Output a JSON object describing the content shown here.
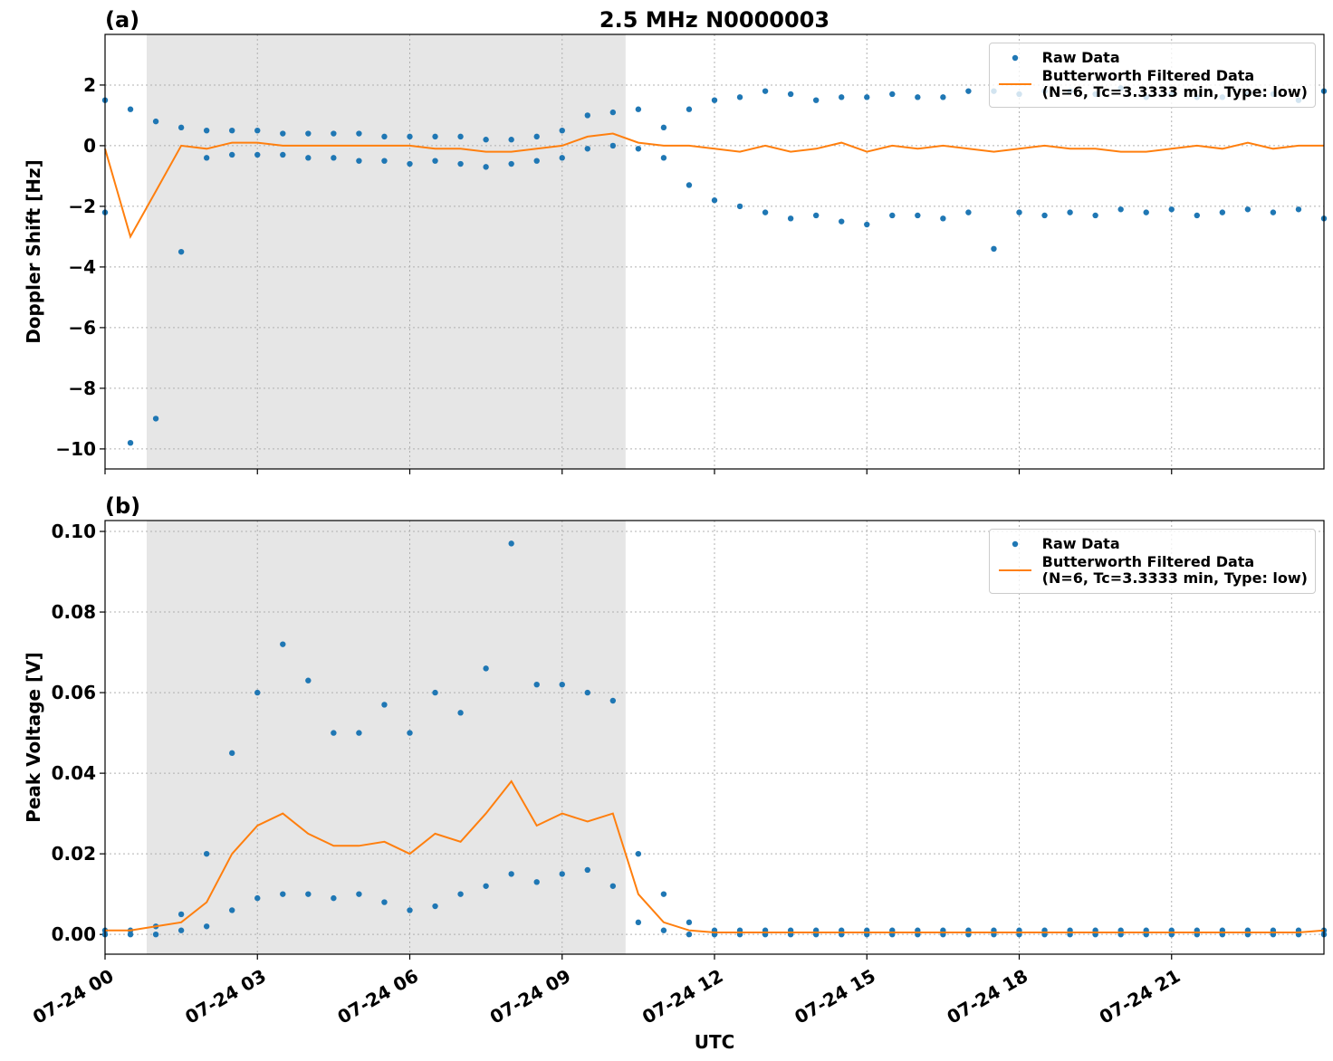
{
  "chart_data": [
    {
      "type": "line",
      "panel_label": "(a)",
      "title": "2.5 MHz N0000003",
      "ylabel": "Doppler Shift [Hz]",
      "xlim": [
        0,
        24
      ],
      "xticks": [
        0,
        3,
        6,
        9,
        12,
        15,
        18,
        21
      ],
      "xtick_labels": false,
      "ylim": [
        -10.66,
        3.67
      ],
      "yticks": [
        {
          "value": -10,
          "label": "−10"
        },
        {
          "value": -8,
          "label": "−8"
        },
        {
          "value": -6,
          "label": "−6"
        },
        {
          "value": -4,
          "label": "−4"
        },
        {
          "value": -2,
          "label": "−2"
        },
        0,
        2
      ],
      "grid": true,
      "legend": "upper right",
      "span": [
        0.82,
        10.25
      ],
      "span_color": "#e6e6e6",
      "series": [
        {
          "name": "Raw Data",
          "type": "scatter",
          "color": "#1f77b4",
          "x": [
            0,
            0.5,
            1,
            1.5,
            2,
            2.5,
            3,
            3.5,
            4,
            4.5,
            5,
            5.5,
            6,
            6.5,
            7,
            7.5,
            8,
            8.5,
            9,
            9.5,
            10,
            10.5,
            11,
            11.5,
            12,
            12.5,
            13,
            13.5,
            14,
            14.5,
            15,
            15.5,
            16,
            16.5,
            17,
            17.5,
            18,
            18.5,
            19,
            19.5,
            20,
            20.5,
            21,
            21.5,
            22,
            22.5,
            23,
            23.5,
            24,
            0,
            0.5,
            1,
            1.5,
            2,
            2.5,
            3,
            3.5,
            4,
            4.5,
            5,
            5.5,
            6,
            6.5,
            7,
            7.5,
            8,
            8.5,
            9,
            9.5,
            10,
            10.5,
            11,
            11.5,
            12,
            12.5,
            13,
            13.5,
            14,
            14.5,
            15,
            15.5,
            16,
            16.5,
            17,
            17.5,
            18,
            18.5,
            19,
            19.5,
            20,
            20.5,
            21,
            21.5,
            22,
            22.5,
            23,
            23.5,
            24
          ],
          "values": [
            1.5,
            1.2,
            0.8,
            0.6,
            0.5,
            0.5,
            0.5,
            0.4,
            0.4,
            0.4,
            0.4,
            0.3,
            0.3,
            0.3,
            0.3,
            0.2,
            0.2,
            0.3,
            0.5,
            1.0,
            1.1,
            1.2,
            0.6,
            1.2,
            1.5,
            1.6,
            1.8,
            1.7,
            1.5,
            1.6,
            1.6,
            1.7,
            1.6,
            1.6,
            1.8,
            1.8,
            1.7,
            1.8,
            1.8,
            1.7,
            1.9,
            1.6,
            1.7,
            1.6,
            1.6,
            1.7,
            1.7,
            1.5,
            1.8,
            -2.2,
            -9.8,
            -9.0,
            -3.5,
            -0.4,
            -0.3,
            -0.3,
            -0.3,
            -0.4,
            -0.4,
            -0.5,
            -0.5,
            -0.6,
            -0.5,
            -0.6,
            -0.7,
            -0.6,
            -0.5,
            -0.4,
            -0.1,
            0.0,
            -0.1,
            -0.4,
            -1.3,
            -1.8,
            -2.0,
            -2.2,
            -2.4,
            -2.3,
            -2.5,
            -2.6,
            -2.3,
            -2.3,
            -2.4,
            -2.2,
            -3.4,
            -2.2,
            -2.3,
            -2.2,
            -2.3,
            -2.1,
            -2.2,
            -2.1,
            -2.3,
            -2.2,
            -2.1,
            -2.2,
            -2.1,
            -2.4
          ]
        },
        {
          "name": "Butterworth Filtered Data\n(N=6, Tc=3.3333 min, Type: low)",
          "type": "line",
          "color": "#ff7f0e",
          "x": [
            0,
            0.5,
            1,
            1.5,
            2,
            2.5,
            3,
            3.5,
            4,
            4.5,
            5,
            5.5,
            6,
            6.5,
            7,
            7.5,
            8,
            8.5,
            9,
            9.5,
            10,
            10.5,
            11,
            11.5,
            12,
            12.5,
            13,
            13.5,
            14,
            14.5,
            15,
            15.5,
            16,
            16.5,
            17,
            17.5,
            18,
            18.5,
            19,
            19.5,
            20,
            20.5,
            21,
            21.5,
            22,
            22.5,
            23,
            23.5,
            24
          ],
          "values": [
            -0.1,
            -3.0,
            -1.5,
            0.0,
            -0.1,
            0.1,
            0.1,
            0.0,
            0.0,
            0.0,
            0.0,
            0.0,
            0.0,
            -0.1,
            -0.1,
            -0.2,
            -0.2,
            -0.1,
            0.0,
            0.3,
            0.4,
            0.1,
            0.0,
            0.0,
            -0.1,
            -0.2,
            0.0,
            -0.2,
            -0.1,
            0.1,
            -0.2,
            0.0,
            -0.1,
            0.0,
            -0.1,
            -0.2,
            -0.1,
            0.0,
            -0.1,
            -0.1,
            -0.2,
            -0.2,
            -0.1,
            0.0,
            -0.1,
            0.1,
            -0.1,
            0.0,
            0.0
          ]
        }
      ]
    },
    {
      "type": "line",
      "panel_label": "(b)",
      "ylabel": "Peak Voltage [V]",
      "xlabel": "UTC",
      "xlim": [
        0,
        24
      ],
      "xticks": [
        {
          "value": 0,
          "label": "07-24 00"
        },
        {
          "value": 3,
          "label": "07-24 03"
        },
        {
          "value": 6,
          "label": "07-24 06"
        },
        {
          "value": 9,
          "label": "07-24 09"
        },
        {
          "value": 12,
          "label": "07-24 12"
        },
        {
          "value": 15,
          "label": "07-24 15"
        },
        {
          "value": 18,
          "label": "07-24 18"
        },
        {
          "value": 21,
          "label": "07-24 21"
        }
      ],
      "xtick_labels": true,
      "ylim": [
        -0.0049,
        0.1027
      ],
      "yticks": [
        {
          "value": 0,
          "label": "0.00"
        },
        {
          "value": 0.02,
          "label": "0.02"
        },
        {
          "value": 0.04,
          "label": "0.04"
        },
        {
          "value": 0.06,
          "label": "0.06"
        },
        {
          "value": 0.08,
          "label": "0.08"
        },
        {
          "value": 0.1,
          "label": "0.10"
        }
      ],
      "grid": true,
      "legend": "upper right",
      "span": [
        0.82,
        10.25
      ],
      "span_color": "#e6e6e6",
      "series": [
        {
          "name": "Raw Data",
          "type": "scatter",
          "color": "#1f77b4",
          "x": [
            0,
            0.5,
            1,
            1.5,
            2,
            2.5,
            3,
            3.5,
            4,
            4.5,
            5,
            5.5,
            6,
            6.5,
            7,
            7.5,
            8,
            8.5,
            9,
            9.5,
            10,
            10.5,
            11,
            11.5,
            12,
            12.5,
            13,
            13.5,
            14,
            14.5,
            15,
            15.5,
            16,
            16.5,
            17,
            17.5,
            18,
            18.5,
            19,
            19.5,
            20,
            20.5,
            21,
            21.5,
            22,
            22.5,
            23,
            23.5,
            24,
            0,
            0.5,
            1,
            1.5,
            2,
            2.5,
            3,
            3.5,
            4,
            4.5,
            5,
            5.5,
            6,
            6.5,
            7,
            7.5,
            8,
            8.5,
            9,
            9.5,
            10,
            10.5,
            11,
            11.5,
            12,
            12.5,
            13,
            13.5,
            14,
            14.5,
            15,
            15.5,
            16,
            16.5,
            17,
            17.5,
            18,
            18.5,
            19,
            19.5,
            20,
            20.5,
            21,
            21.5,
            22,
            22.5,
            23,
            23.5,
            24
          ],
          "values": [
            0.001,
            0.001,
            0.002,
            0.005,
            0.02,
            0.045,
            0.06,
            0.072,
            0.063,
            0.05,
            0.05,
            0.057,
            0.05,
            0.06,
            0.055,
            0.066,
            0.097,
            0.062,
            0.062,
            0.06,
            0.058,
            0.02,
            0.01,
            0.003,
            0.001,
            0.001,
            0.001,
            0.001,
            0.001,
            0.001,
            0.001,
            0.001,
            0.001,
            0.001,
            0.001,
            0.001,
            0.001,
            0.001,
            0.001,
            0.001,
            0.001,
            0.001,
            0.001,
            0.001,
            0.001,
            0.001,
            0.001,
            0.001,
            0.001,
            0,
            0,
            0,
            0.001,
            0.002,
            0.006,
            0.009,
            0.01,
            0.01,
            0.009,
            0.01,
            0.008,
            0.006,
            0.007,
            0.01,
            0.012,
            0.015,
            0.013,
            0.015,
            0.016,
            0.012,
            0.003,
            0.001,
            0,
            0,
            0,
            0,
            0,
            0,
            0,
            0,
            0,
            0,
            0,
            0,
            0,
            0,
            0,
            0,
            0,
            0,
            0,
            0,
            0,
            0,
            0,
            0,
            0,
            0
          ]
        },
        {
          "name": "Butterworth Filtered Data\n(N=6, Tc=3.3333 min, Type: low)",
          "type": "line",
          "color": "#ff7f0e",
          "x": [
            0,
            0.5,
            1,
            1.5,
            2,
            2.5,
            3,
            3.5,
            4,
            4.5,
            5,
            5.5,
            6,
            6.5,
            7,
            7.5,
            8,
            8.5,
            9,
            9.5,
            10,
            10.5,
            11,
            11.5,
            12,
            12.5,
            13,
            13.5,
            14,
            14.5,
            15,
            15.5,
            16,
            16.5,
            17,
            17.5,
            18,
            18.5,
            19,
            19.5,
            20,
            20.5,
            21,
            21.5,
            22,
            22.5,
            23,
            23.5,
            24
          ],
          "values": [
            0.001,
            0.001,
            0.002,
            0.003,
            0.008,
            0.02,
            0.027,
            0.03,
            0.025,
            0.022,
            0.022,
            0.023,
            0.02,
            0.025,
            0.023,
            0.03,
            0.038,
            0.027,
            0.03,
            0.028,
            0.03,
            0.01,
            0.003,
            0.001,
            0.0005,
            0.0005,
            0.0005,
            0.0005,
            0.0005,
            0.0005,
            0.0005,
            0.0005,
            0.0005,
            0.0005,
            0.0005,
            0.0005,
            0.0005,
            0.0005,
            0.0005,
            0.0005,
            0.0005,
            0.0005,
            0.0005,
            0.0005,
            0.0005,
            0.0005,
            0.0005,
            0.0005,
            0.001
          ]
        }
      ]
    }
  ]
}
